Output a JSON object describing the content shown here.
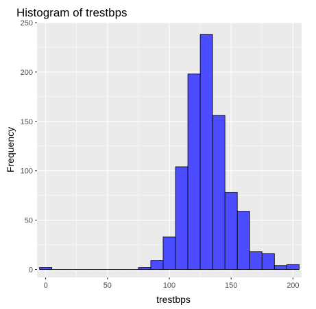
{
  "chart_data": {
    "type": "bar",
    "title": "Histogram of trestbps",
    "xlabel": "trestbps",
    "ylabel": "Frequency",
    "xlim": [
      -7,
      207
    ],
    "ylim": [
      -8,
      250
    ],
    "x_ticks": [
      0,
      50,
      100,
      150,
      200
    ],
    "y_ticks": [
      0,
      50,
      100,
      150,
      200,
      250
    ],
    "bin_width": 10,
    "bins": [
      {
        "start": -5,
        "end": 5,
        "count": 2
      },
      {
        "start": 5,
        "end": 15,
        "count": 0
      },
      {
        "start": 15,
        "end": 25,
        "count": 0
      },
      {
        "start": 25,
        "end": 35,
        "count": 0
      },
      {
        "start": 35,
        "end": 45,
        "count": 0
      },
      {
        "start": 45,
        "end": 55,
        "count": 0
      },
      {
        "start": 55,
        "end": 65,
        "count": 0
      },
      {
        "start": 65,
        "end": 75,
        "count": 0
      },
      {
        "start": 75,
        "end": 85,
        "count": 2
      },
      {
        "start": 85,
        "end": 95,
        "count": 9
      },
      {
        "start": 95,
        "end": 105,
        "count": 33
      },
      {
        "start": 105,
        "end": 115,
        "count": 104
      },
      {
        "start": 115,
        "end": 125,
        "count": 198
      },
      {
        "start": 125,
        "end": 135,
        "count": 238
      },
      {
        "start": 135,
        "end": 145,
        "count": 156
      },
      {
        "start": 145,
        "end": 155,
        "count": 78
      },
      {
        "start": 155,
        "end": 165,
        "count": 59
      },
      {
        "start": 165,
        "end": 175,
        "count": 18
      },
      {
        "start": 175,
        "end": 185,
        "count": 16
      },
      {
        "start": 185,
        "end": 195,
        "count": 4
      },
      {
        "start": 195,
        "end": 205,
        "count": 5
      }
    ],
    "grid": true,
    "colors": {
      "bar_fill": "#4b4bff",
      "bar_stroke": "#000000",
      "panel_background": "#ebebeb",
      "grid": "#ffffff"
    }
  }
}
